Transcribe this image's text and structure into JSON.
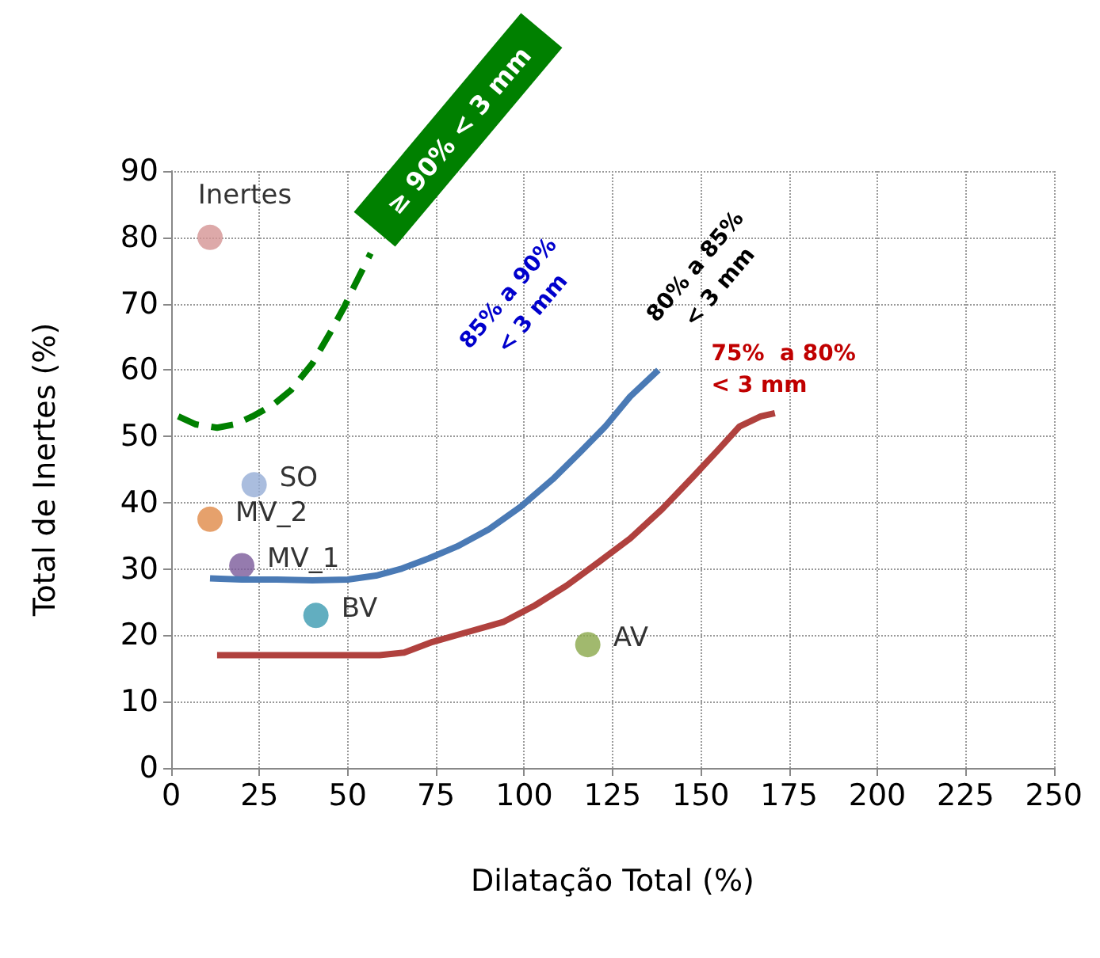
{
  "chart_data": {
    "type": "line",
    "xlabel": "Dilatação Total (%)",
    "ylabel": "Total de Inertes (%)",
    "xlim": [
      0,
      250
    ],
    "xticks": [
      0,
      25,
      50,
      75,
      100,
      125,
      150,
      175,
      200,
      225,
      250
    ],
    "ylim": [
      0,
      90
    ],
    "yticks": [
      0,
      10,
      20,
      30,
      40,
      50,
      60,
      70,
      80,
      90
    ],
    "grid": true,
    "legend": false,
    "marker": "none",
    "annotations": [
      "≥ 90% < 3 mm",
      "85% a 90%\n< 3 mm",
      "80% a 85%\n< 3 mm",
      "75%  a 80%\n< 3 mm"
    ],
    "series": [
      {
        "color": "#008000",
        "line_style": "dashed",
        "x": [
          2,
          7,
          13,
          18,
          23,
          29,
          34,
          40,
          45,
          49,
          52,
          56.5
        ],
        "values": [
          53,
          51.8,
          51.3,
          51.8,
          53,
          54.8,
          57,
          61,
          65.6,
          69.5,
          72.8,
          77.6
        ]
      },
      {
        "color": "#4a7ab5",
        "line_style": "solid",
        "x": [
          11,
          20,
          30,
          40,
          50,
          58,
          65,
          73,
          81,
          90,
          99,
          108,
          116,
          123,
          130,
          134,
          138
        ],
        "values": [
          28.6,
          28.4,
          28.4,
          28.3,
          28.4,
          29,
          30,
          31.6,
          33.4,
          36,
          39.4,
          43.5,
          47.7,
          51.5,
          56,
          58,
          60
        ]
      },
      {
        "color": "#b0413e",
        "line_style": "solid",
        "x": [
          13,
          25,
          40,
          50,
          59,
          66,
          74,
          84,
          94,
          103,
          112,
          121,
          130,
          139,
          148,
          155,
          161,
          167,
          171
        ],
        "values": [
          17,
          17,
          17,
          17,
          17,
          17.4,
          19,
          20.5,
          22,
          24.5,
          27.5,
          31,
          34.6,
          39,
          44,
          48,
          51.5,
          53,
          53.5
        ]
      },
      {
        "type": "scatter",
        "name": "Inertes",
        "color": "#d49494",
        "marker": "circle",
        "x": [
          11
        ],
        "values": [
          80
        ]
      },
      {
        "type": "scatter",
        "name": "SO",
        "color": "#95acd6",
        "marker": "circle",
        "x": [
          23.5
        ],
        "values": [
          42.7
        ]
      },
      {
        "type": "scatter",
        "name": "MV_2",
        "color": "#e08a47",
        "marker": "circle",
        "x": [
          11
        ],
        "values": [
          37.5
        ]
      },
      {
        "type": "scatter",
        "name": "MV_1",
        "color": "#7a5a9a",
        "marker": "circle",
        "x": [
          20
        ],
        "values": [
          30.5
        ]
      },
      {
        "type": "scatter",
        "name": "BV",
        "color": "#3b9ab0",
        "marker": "circle",
        "x": [
          41
        ],
        "values": [
          23
        ]
      },
      {
        "type": "scatter",
        "name": "AV",
        "color": "#8aa84a",
        "marker": "circle",
        "x": [
          118
        ],
        "values": [
          18.6
        ]
      }
    ]
  }
}
